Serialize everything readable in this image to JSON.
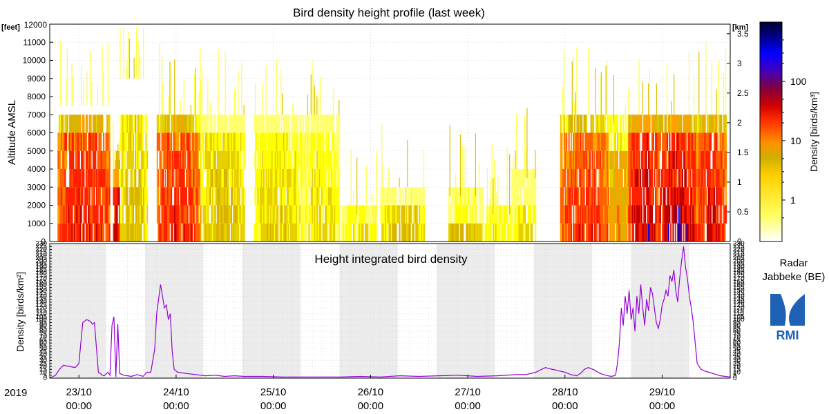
{
  "colors": {
    "profile_low": "#ffff40",
    "profile_mid": "#ff7a00",
    "profile_high": "#e80000",
    "profile_top": "#0000e0",
    "integrated_line": "#9400d3",
    "night_shade": "#ececec",
    "logo_blue": "#1f61b4"
  },
  "station": {
    "line1": "Radar",
    "line2": "Jabbeke (BE)",
    "logo_text": "RMI"
  },
  "chart_data": [
    {
      "type": "heatmap",
      "title": "Bird density height profile (last week)",
      "ylabel": "Altitude AMSL",
      "y_unit_left": "[feet]",
      "y_unit_right": "[km]",
      "ylim_feet": [
        0,
        12000
      ],
      "yticks_feet": [
        0,
        1000,
        2000,
        3000,
        4000,
        5000,
        6000,
        7000,
        8000,
        9000,
        10000,
        11000,
        12000
      ],
      "ylim_km": [
        0,
        3.66
      ],
      "yticks_km": [
        "0",
        "0.5",
        "1",
        "1.5",
        "2",
        "2.5",
        "3",
        "3.5"
      ],
      "yticks_km_values": [
        0,
        0.5,
        1,
        1.5,
        2,
        2.5,
        3,
        3.5
      ],
      "xlim_days": [
        0,
        7
      ],
      "altitude_bins_feet": [
        500,
        1500,
        2500,
        3500,
        4500,
        5500,
        6500
      ],
      "grid": true,
      "colorbar": {
        "label": "Density [birds/km³]",
        "scale": "log",
        "range": [
          0.2,
          1000
        ],
        "ticks": [
          "1",
          "10",
          "100"
        ],
        "tick_values": [
          1,
          10,
          100
        ]
      },
      "bursts": [
        {
          "start": 0.08,
          "end": 0.62,
          "peak": 40,
          "top_feet": 7500
        },
        {
          "start": 0.65,
          "end": 0.72,
          "peak": 60,
          "top_feet": 4500
        },
        {
          "start": 0.72,
          "end": 1.0,
          "peak": 3,
          "top_feet": 9000
        },
        {
          "start": 1.1,
          "end": 1.55,
          "peak": 35,
          "top_feet": 7000
        },
        {
          "start": 1.55,
          "end": 2.0,
          "peak": 3,
          "top_feet": 7000
        },
        {
          "start": 2.1,
          "end": 2.6,
          "peak": 2,
          "top_feet": 7000
        },
        {
          "start": 2.6,
          "end": 2.98,
          "peak": 1.5,
          "top_feet": 7000
        },
        {
          "start": 3.0,
          "end": 3.4,
          "peak": 5,
          "top_feet": 1500
        },
        {
          "start": 3.4,
          "end": 3.85,
          "peak": 3,
          "top_feet": 3000
        },
        {
          "start": 4.1,
          "end": 4.45,
          "peak": 4,
          "top_feet": 2500
        },
        {
          "start": 4.45,
          "end": 4.8,
          "peak": 5,
          "top_feet": 1500
        },
        {
          "start": 4.75,
          "end": 5.0,
          "peak": 1.5,
          "top_feet": 3500
        },
        {
          "start": 5.25,
          "end": 5.75,
          "peak": 30,
          "top_feet": 7000
        },
        {
          "start": 5.75,
          "end": 5.95,
          "peak": 8,
          "top_feet": 6500
        },
        {
          "start": 5.95,
          "end": 6.25,
          "peak": 60,
          "top_feet": 7000
        },
        {
          "start": 6.25,
          "end": 6.65,
          "peak": 60,
          "top_feet": 7000
        },
        {
          "start": 6.65,
          "end": 6.95,
          "peak": 40,
          "top_feet": 7000
        }
      ]
    },
    {
      "type": "line",
      "title": "Height integrated bird density",
      "ylabel": "Density [birds/km²]",
      "xlabel": "",
      "ylim": [
        0,
        230
      ],
      "yticks": [
        0,
        5,
        10,
        15,
        20,
        25,
        30,
        35,
        40,
        45,
        50,
        55,
        60,
        65,
        70,
        75,
        80,
        85,
        90,
        95,
        100,
        105,
        110,
        115,
        120,
        125,
        130,
        135,
        140,
        145,
        150,
        155,
        160,
        165,
        170,
        175,
        180,
        185,
        190,
        195,
        200,
        205,
        210,
        215,
        220,
        225,
        230
      ],
      "xlim_days": [
        0,
        7
      ],
      "grid": true,
      "year_label": "2019",
      "date_ticks": [
        {
          "day": 0.3,
          "date": "23/10",
          "time": "00:00"
        },
        {
          "day": 1.3,
          "date": "24/10",
          "time": "00:00"
        },
        {
          "day": 2.3,
          "date": "25/10",
          "time": "00:00"
        },
        {
          "day": 3.3,
          "date": "26/10",
          "time": "00:00"
        },
        {
          "day": 4.3,
          "date": "27/10",
          "time": "00:00"
        },
        {
          "day": 5.3,
          "date": "28/10",
          "time": "00:00"
        },
        {
          "day": 6.3,
          "date": "29/10",
          "time": "00:00"
        }
      ],
      "night_periods_days": [
        [
          0.0,
          0.58
        ],
        [
          0.98,
          1.58
        ],
        [
          1.98,
          2.58
        ],
        [
          2.98,
          3.58
        ],
        [
          3.98,
          4.58
        ],
        [
          4.98,
          5.58
        ],
        [
          5.98,
          6.58
        ]
      ],
      "series": [
        {
          "name": "",
          "x": [
            0.0,
            0.06,
            0.1,
            0.14,
            0.2,
            0.26,
            0.3,
            0.32,
            0.34,
            0.38,
            0.42,
            0.44,
            0.46,
            0.5,
            0.52,
            0.54,
            0.56,
            0.6,
            0.62,
            0.64,
            0.66,
            0.68,
            0.7,
            0.72,
            0.76,
            0.8,
            0.84,
            0.9,
            0.96,
            1.0,
            1.04,
            1.08,
            1.1,
            1.12,
            1.14,
            1.16,
            1.18,
            1.2,
            1.22,
            1.24,
            1.26,
            1.28,
            1.3,
            1.32,
            1.36,
            1.4,
            1.5,
            1.6,
            1.7,
            1.8,
            1.9,
            2.0,
            2.2,
            2.4,
            2.6,
            2.8,
            3.0,
            3.2,
            3.4,
            3.6,
            3.8,
            4.0,
            4.2,
            4.4,
            4.6,
            4.8,
            4.9,
            5.0,
            5.06,
            5.1,
            5.14,
            5.2,
            5.3,
            5.36,
            5.42,
            5.46,
            5.5,
            5.54,
            5.6,
            5.66,
            5.7,
            5.74,
            5.78,
            5.82,
            5.84,
            5.86,
            5.88,
            5.9,
            5.92,
            5.94,
            5.96,
            5.98,
            6.0,
            6.02,
            6.04,
            6.06,
            6.08,
            6.1,
            6.12,
            6.14,
            6.16,
            6.18,
            6.2,
            6.22,
            6.24,
            6.26,
            6.28,
            6.3,
            6.32,
            6.34,
            6.36,
            6.38,
            6.4,
            6.42,
            6.44,
            6.46,
            6.48,
            6.5,
            6.52,
            6.54,
            6.56,
            6.58,
            6.6,
            6.62,
            6.64,
            6.66,
            6.7,
            6.74,
            6.78,
            6.82,
            6.86,
            6.9,
            6.95,
            7.0
          ],
          "y": [
            0,
            5,
            15,
            22,
            20,
            18,
            25,
            60,
            95,
            100,
            97,
            92,
            95,
            10,
            8,
            5,
            4,
            10,
            5,
            90,
            105,
            2,
            92,
            8,
            5,
            4,
            3,
            6,
            3,
            10,
            10,
            50,
            110,
            135,
            160,
            140,
            120,
            125,
            100,
            110,
            45,
            15,
            12,
            10,
            9,
            8,
            6,
            4,
            5,
            3,
            4,
            3,
            3,
            2,
            2,
            2,
            2,
            3,
            2,
            4,
            3,
            4,
            5,
            3,
            4,
            6,
            6,
            10,
            15,
            18,
            16,
            14,
            10,
            6,
            4,
            8,
            15,
            18,
            14,
            8,
            6,
            4,
            3,
            5,
            25,
            60,
            120,
            90,
            140,
            110,
            150,
            100,
            120,
            80,
            140,
            110,
            160,
            120,
            90,
            135,
            115,
            155,
            145,
            120,
            95,
            85,
            100,
            125,
            135,
            150,
            140,
            175,
            165,
            185,
            150,
            130,
            170,
            200,
            225,
            190,
            170,
            140,
            120,
            95,
            60,
            25,
            15,
            12,
            10,
            8,
            6,
            4,
            3,
            2
          ]
        }
      ]
    }
  ]
}
